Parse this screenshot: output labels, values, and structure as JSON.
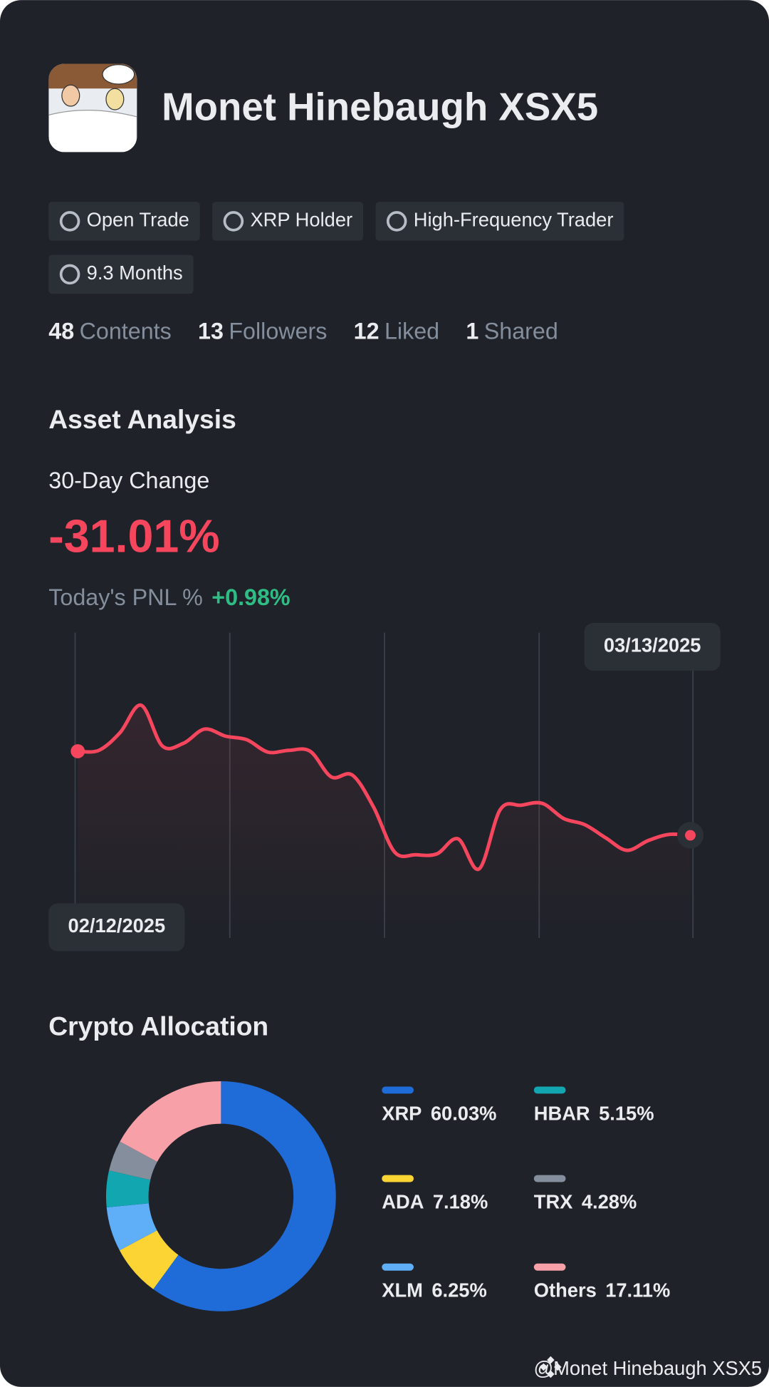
{
  "profile": {
    "name": "Monet Hinebaugh XSX5",
    "badges": [
      "Open Trade",
      "XRP Holder",
      "High-Frequency Trader",
      "9.3 Months"
    ],
    "stats": [
      {
        "value": 48,
        "label": "Contents"
      },
      {
        "value": 13,
        "label": "Followers"
      },
      {
        "value": 12,
        "label": "Liked"
      },
      {
        "value": 1,
        "label": "Shared"
      }
    ]
  },
  "asset_analysis": {
    "title": "Asset Analysis",
    "change_label": "30-Day Change",
    "change": "-31.01%",
    "pnl_label": "Today's PNL %",
    "pnl": "+0.98%",
    "chart": {
      "type": "line",
      "color": "#f6465d",
      "x": [
        "02/12/2025",
        null,
        null,
        null,
        null,
        null,
        null,
        null,
        null,
        null,
        null,
        null,
        null,
        null,
        null,
        null,
        null,
        null,
        null,
        null,
        null,
        null,
        null,
        null,
        null,
        null,
        null,
        null,
        null,
        "03/13/2025"
      ],
      "values": [
        211,
        212,
        232,
        263,
        217,
        220,
        236,
        228,
        224,
        210,
        212,
        211,
        182,
        184,
        148,
        97,
        94,
        95,
        112,
        78,
        145,
        150,
        152,
        135,
        128,
        113,
        99,
        110,
        117,
        116
      ],
      "ylim": [
        0,
        345
      ]
    }
  },
  "crypto_allocation": {
    "title": "Crypto Allocation",
    "chart": {
      "type": "pie",
      "categories": [
        "XRP",
        "ADA",
        "XLM",
        "HBAR",
        "TRX",
        "Others"
      ],
      "values": [
        60.03,
        7.18,
        6.25,
        5.15,
        4.28,
        17.11
      ],
      "value_labels": [
        "60.03%",
        "7.18%",
        "6.25%",
        "5.15%",
        "4.28%",
        "17.11%"
      ],
      "colors": [
        "#1f6cd8",
        "#fcd535",
        "#5eaef8",
        "#12a6b0",
        "#848e9c",
        "#f8a0a8"
      ]
    }
  },
  "footer": {
    "handle": "@Monet Hinebaugh XSX5"
  }
}
